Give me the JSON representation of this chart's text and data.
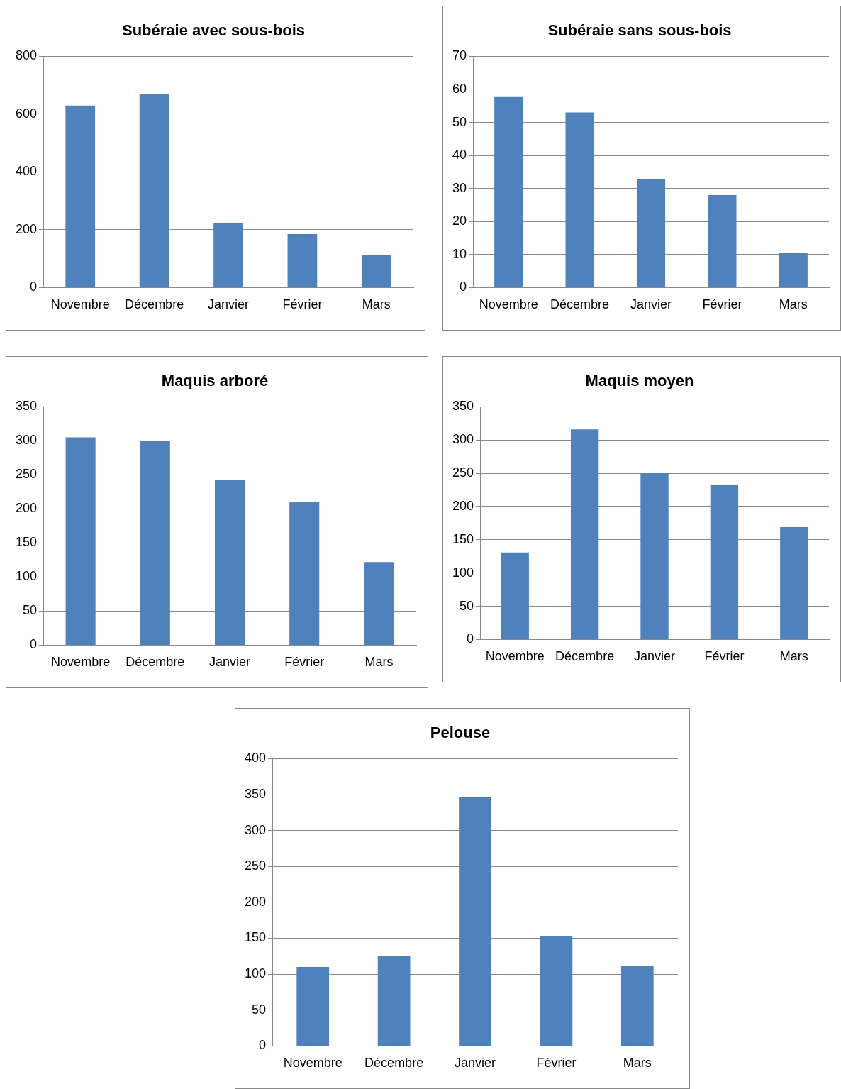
{
  "chart_data": [
    {
      "type": "bar",
      "title": "Subéraie avec sous-bois",
      "categories": [
        "Novembre",
        "Décembre",
        "Janvier",
        "Février",
        "Mars"
      ],
      "values": [
        630,
        670,
        222,
        185,
        114
      ],
      "color": "#4f81bd",
      "ylim": [
        0,
        800
      ],
      "yticks": [
        0,
        200,
        400,
        600,
        800
      ],
      "grid": "y",
      "legend": false
    },
    {
      "type": "bar",
      "title": "Subéraie sans sous-bois",
      "categories": [
        "Novembre",
        "Décembre",
        "Janvier",
        "Février",
        "Mars"
      ],
      "values": [
        57.7,
        53,
        32.7,
        28,
        10.6
      ],
      "color": "#4f81bd",
      "ylim": [
        0,
        70
      ],
      "yticks": [
        0,
        10,
        20,
        30,
        40,
        50,
        60,
        70
      ],
      "grid": "y",
      "legend": false
    },
    {
      "type": "bar",
      "title": "Maquis arboré",
      "categories": [
        "Novembre",
        "Décembre",
        "Janvier",
        "Février",
        "Mars"
      ],
      "values": [
        305,
        300,
        242,
        210,
        122
      ],
      "color": "#4f81bd",
      "ylim": [
        0,
        350
      ],
      "yticks": [
        0,
        50,
        100,
        150,
        200,
        250,
        300,
        350
      ],
      "grid": "y",
      "legend": false
    },
    {
      "type": "bar",
      "title": "Maquis moyen",
      "categories": [
        "Novembre",
        "Décembre",
        "Janvier",
        "Février",
        "Mars"
      ],
      "values": [
        131,
        316,
        250,
        233,
        169
      ],
      "color": "#4f81bd",
      "ylim": [
        0,
        350
      ],
      "yticks": [
        0,
        50,
        100,
        150,
        200,
        250,
        300,
        350
      ],
      "grid": "y",
      "legend": false
    },
    {
      "type": "bar",
      "title": "Pelouse",
      "categories": [
        "Novembre",
        "Décembre",
        "Janvier",
        "Février",
        "Mars"
      ],
      "values": [
        110,
        125,
        347,
        153,
        112
      ],
      "color": "#4f81bd",
      "ylim": [
        0,
        400
      ],
      "yticks": [
        0,
        50,
        100,
        150,
        200,
        250,
        300,
        350,
        400
      ],
      "grid": "y",
      "legend": false
    }
  ]
}
